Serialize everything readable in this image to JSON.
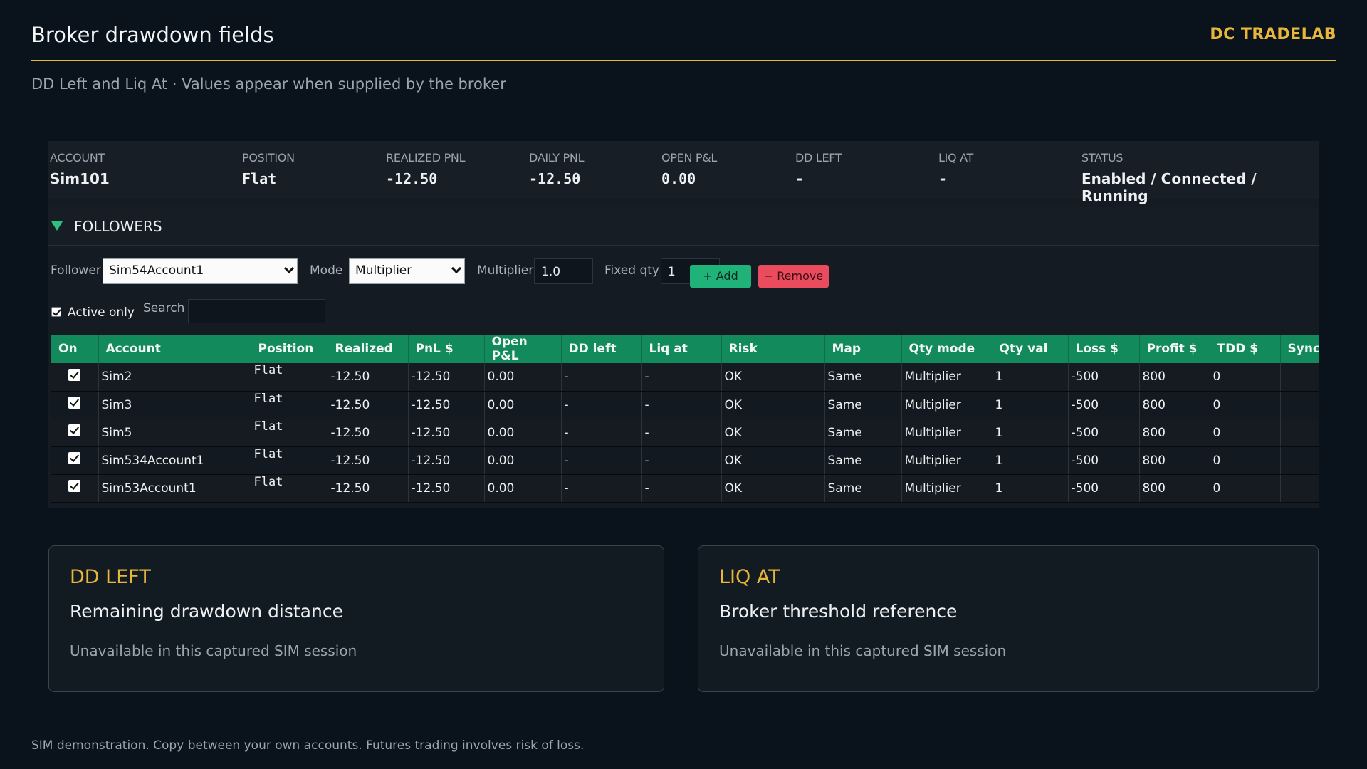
{
  "header": {
    "title": "Broker drawdown fields",
    "brand": "DC TRADELAB",
    "subtitle": "DD Left and Liq At · Values appear when supplied by the broker"
  },
  "summary": [
    {
      "label": "ACCOUNT",
      "value": "Sim101"
    },
    {
      "label": "POSITION",
      "value": "Flat"
    },
    {
      "label": "REALIZED PNL",
      "value": "-12.50"
    },
    {
      "label": "DAILY PNL",
      "value": "-12.50"
    },
    {
      "label": "OPEN P&L",
      "value": "0.00"
    },
    {
      "label": "DD LEFT",
      "value": "-"
    },
    {
      "label": "LIQ AT",
      "value": "-"
    },
    {
      "label": "STATUS",
      "value": "Enabled / Connected / Running"
    }
  ],
  "followers": {
    "title": "FOLLOWERS",
    "follower_label": "Follower",
    "follower_value": "Sim54Account1",
    "mode_label": "Mode",
    "mode_value": "Multiplier",
    "multiplier_label": "Multiplier",
    "multiplier_value": "1.0",
    "fixed_qty_label": "Fixed qty",
    "fixed_qty_value": "1",
    "add_label": "+ Add",
    "remove_label": "− Remove",
    "active_only_label": "Active only",
    "search_label": "Search",
    "search_value": ""
  },
  "table": {
    "headers": [
      "On",
      "Account",
      "Position",
      "Realized",
      "PnL $",
      "Open P&L",
      "DD left",
      "Liq at",
      "Risk",
      "Map",
      "Qty mode",
      "Qty val",
      "Loss $",
      "Profit $",
      "TDD $",
      "Sync"
    ],
    "rows": [
      [
        "",
        "Sim2",
        "Flat",
        "-12.50",
        "-12.50",
        "0.00",
        "-",
        "-",
        "OK",
        "Same",
        "Multiplier",
        "1",
        "-500",
        "800",
        "0",
        ""
      ],
      [
        "",
        "Sim3",
        "Flat",
        "-12.50",
        "-12.50",
        "0.00",
        "-",
        "-",
        "OK",
        "Same",
        "Multiplier",
        "1",
        "-500",
        "800",
        "0",
        ""
      ],
      [
        "",
        "Sim5",
        "Flat",
        "-12.50",
        "-12.50",
        "0.00",
        "-",
        "-",
        "OK",
        "Same",
        "Multiplier",
        "1",
        "-500",
        "800",
        "0",
        ""
      ],
      [
        "",
        "Sim534Account1",
        "Flat",
        "-12.50",
        "-12.50",
        "0.00",
        "-",
        "-",
        "OK",
        "Same",
        "Multiplier",
        "1",
        "-500",
        "800",
        "0",
        ""
      ],
      [
        "",
        "Sim53Account1",
        "Flat",
        "-12.50",
        "-12.50",
        "0.00",
        "-",
        "-",
        "OK",
        "Same",
        "Multiplier",
        "1",
        "-500",
        "800",
        "0",
        ""
      ]
    ]
  },
  "cards": [
    {
      "title": "DD LEFT",
      "subtitle": "Remaining drawdown distance",
      "note": "Unavailable in this captured SIM session"
    },
    {
      "title": "LIQ AT",
      "subtitle": "Broker threshold reference",
      "note": "Unavailable in this captured SIM session"
    }
  ],
  "footer": "SIM demonstration. Copy between your own accounts. Futures trading involves risk of loss."
}
